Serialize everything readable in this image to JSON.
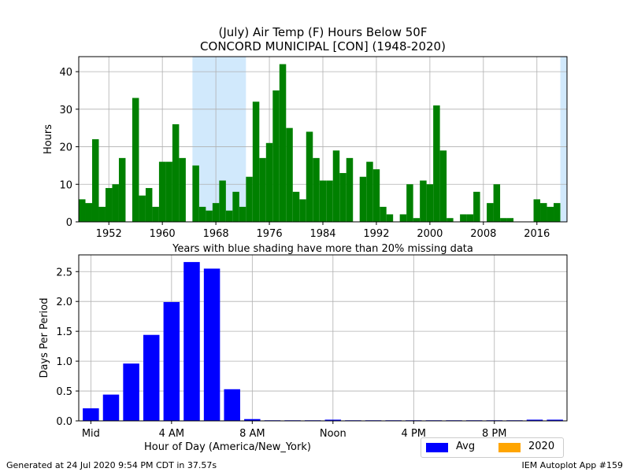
{
  "chart_data": [
    {
      "type": "bar",
      "title": "(July) Air Temp (F) Hours Below 50F",
      "subtitle": "CONCORD MUNICIPAL [CON] (1948-2020)",
      "ylabel": "Hours",
      "xlabel": "",
      "note": "Years with blue shading have more than 20% missing data",
      "xlim": [
        1947.5,
        2020.5
      ],
      "ylim": [
        0,
        44
      ],
      "yticks": [
        0,
        10,
        20,
        30,
        40
      ],
      "xticks": [
        1952,
        1960,
        1968,
        1976,
        1984,
        1992,
        2000,
        2008,
        2016
      ],
      "bar_color": "#008000",
      "shade_color": "#d1e9fc",
      "grid": true,
      "missing_data_spans": [
        [
          1964.5,
          1972.5
        ],
        [
          2019.5,
          2020.5
        ]
      ],
      "years": [
        1948,
        1949,
        1950,
        1951,
        1952,
        1953,
        1954,
        1955,
        1956,
        1957,
        1958,
        1959,
        1960,
        1961,
        1962,
        1963,
        1964,
        1965,
        1966,
        1967,
        1968,
        1969,
        1970,
        1971,
        1972,
        1973,
        1974,
        1975,
        1976,
        1977,
        1978,
        1979,
        1980,
        1981,
        1982,
        1983,
        1984,
        1985,
        1986,
        1987,
        1988,
        1989,
        1990,
        1991,
        1992,
        1993,
        1994,
        1995,
        1996,
        1997,
        1998,
        1999,
        2000,
        2001,
        2002,
        2003,
        2004,
        2005,
        2006,
        2007,
        2008,
        2009,
        2010,
        2011,
        2012,
        2013,
        2014,
        2015,
        2016,
        2017,
        2018,
        2019,
        2020
      ],
      "values": [
        6,
        5,
        22,
        4,
        9,
        10,
        17,
        0,
        33,
        7,
        9,
        4,
        16,
        16,
        26,
        17,
        0,
        15,
        4,
        3,
        5,
        11,
        3,
        8,
        4,
        12,
        32,
        17,
        21,
        35,
        42,
        25,
        8,
        6,
        24,
        17,
        11,
        11,
        19,
        13,
        17,
        0,
        12,
        16,
        14,
        4,
        2,
        0,
        2,
        10,
        1,
        11,
        10,
        31,
        19,
        1,
        0,
        2,
        2,
        8,
        0,
        5,
        10,
        1,
        1,
        0,
        0,
        0,
        6,
        5,
        4,
        5,
        0
      ]
    },
    {
      "type": "bar",
      "title": "",
      "xlabel": "Hour of Day (America/New_York)",
      "ylabel": "Days Per Period",
      "xlim": [
        -0.6,
        23.6
      ],
      "ylim": [
        0,
        2.78
      ],
      "yticks": [
        "0.0",
        "0.5",
        "1.0",
        "1.5",
        "2.0",
        "2.5"
      ],
      "xticks": [
        {
          "hour": 0,
          "label": "Mid"
        },
        {
          "hour": 4,
          "label": "4 AM"
        },
        {
          "hour": 8,
          "label": "8 AM"
        },
        {
          "hour": 12,
          "label": "Noon"
        },
        {
          "hour": 16,
          "label": "4 PM"
        },
        {
          "hour": 20,
          "label": "8 PM"
        }
      ],
      "grid": true,
      "legend_position": "below-right",
      "series": [
        {
          "name": "Avg",
          "color": "#0000ff",
          "values": [
            0.21,
            0.44,
            0.96,
            1.44,
            1.99,
            2.66,
            2.55,
            0.53,
            0.03,
            0.01,
            0.01,
            0.01,
            0.02,
            0.01,
            0.01,
            0.01,
            0.01,
            0.01,
            0.01,
            0.01,
            0.01,
            0.01,
            0.02,
            0.02
          ]
        },
        {
          "name": "2020",
          "color": "#ffa500",
          "values": [
            0,
            0,
            0,
            0,
            0,
            0,
            0,
            0,
            0,
            0,
            0,
            0,
            0,
            0,
            0,
            0,
            0,
            0,
            0,
            0,
            0,
            0,
            0,
            0
          ]
        }
      ]
    }
  ],
  "footer": {
    "left": "Generated at 24 Jul 2020 9:54 PM CDT in 37.57s",
    "right": "IEM Autoplot App #159"
  }
}
